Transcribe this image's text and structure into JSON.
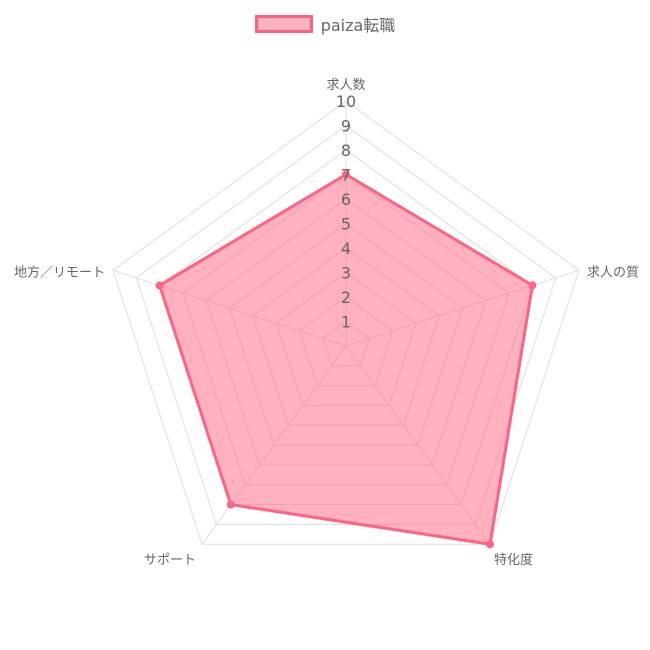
{
  "chart_data": {
    "type": "radar",
    "categories": [
      "求人数",
      "求人の質",
      "特化度",
      "サポート",
      "地方／リモート"
    ],
    "series": [
      {
        "name": "paiza転職",
        "values": [
          7,
          8,
          10,
          8,
          8
        ]
      }
    ],
    "r_range": [
      0,
      10
    ],
    "r_ticks": [
      "1",
      "2",
      "3",
      "4",
      "5",
      "6",
      "7",
      "8",
      "9",
      "10"
    ],
    "legend_position": "top",
    "grid": true,
    "colors": {
      "series_fill": "rgba(255, 99, 132, 0.5)",
      "series_border": "#ff6384",
      "grid": "#dddddd",
      "label": "#666666"
    }
  }
}
